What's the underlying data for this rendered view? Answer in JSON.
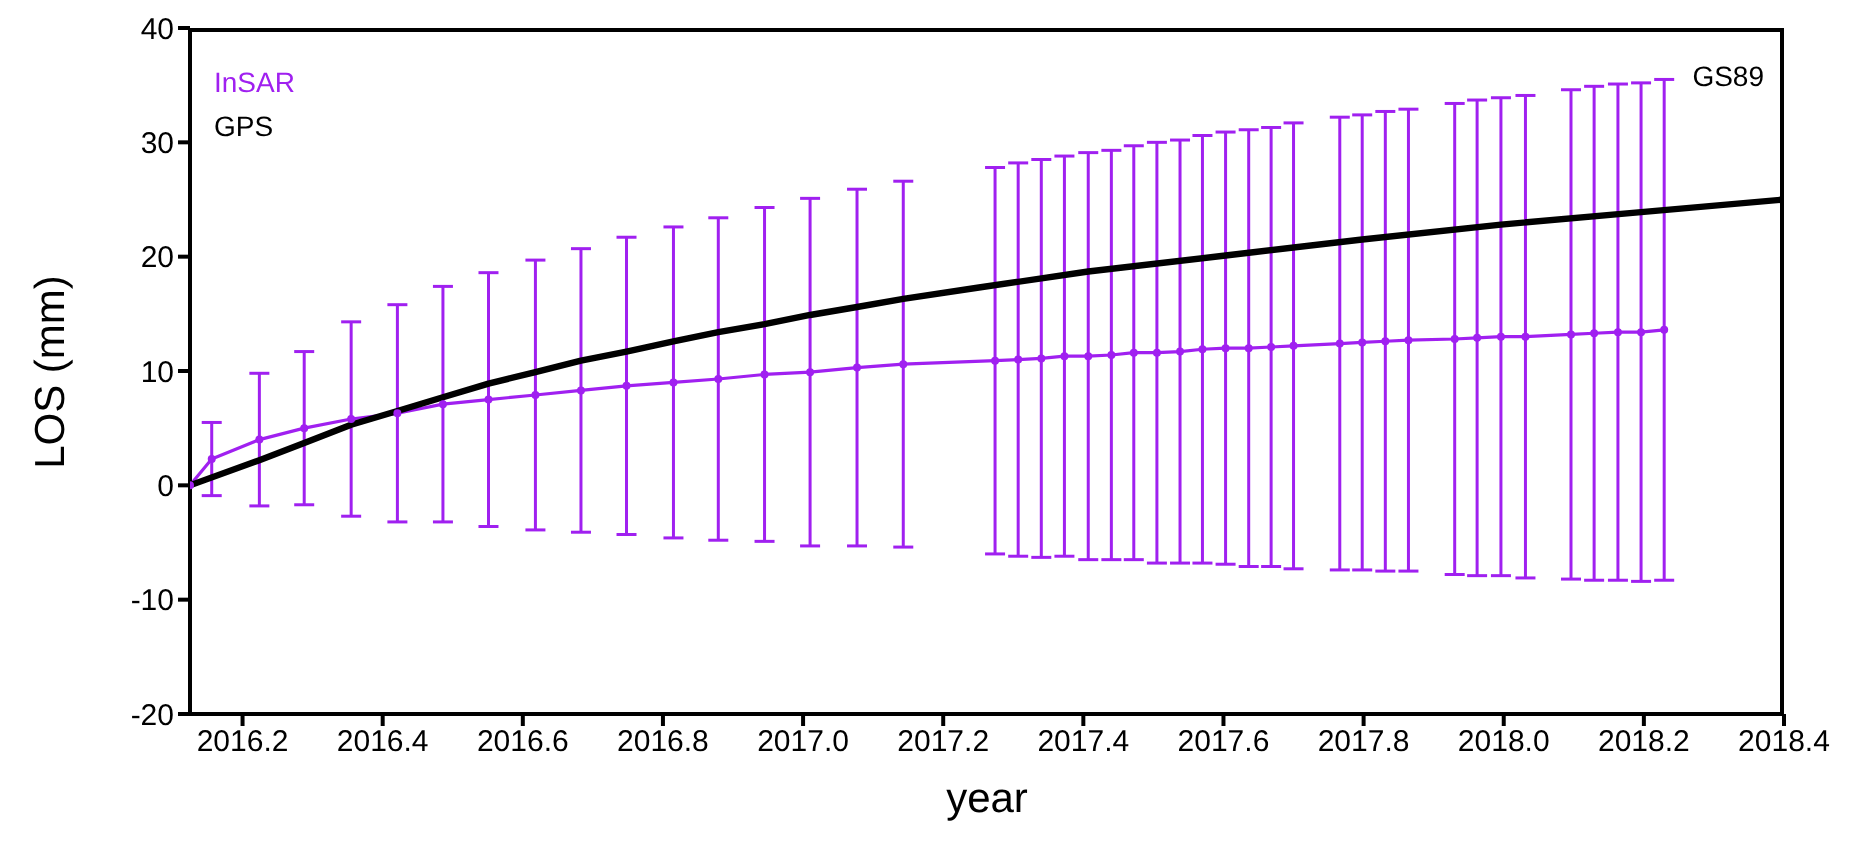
{
  "chart_data": {
    "type": "line",
    "xlabel": "year",
    "ylabel": "LOS (mm)",
    "annotations": [
      "GS89"
    ],
    "legend": "top left",
    "xlim": [
      2016.125,
      2018.4
    ],
    "xticks": [
      {
        "value": 2016.2,
        "label": "2016.2"
      },
      {
        "value": 2016.4,
        "label": "2016.4"
      },
      {
        "value": 2016.6,
        "label": "2016.6"
      },
      {
        "value": 2016.8,
        "label": "2016.8"
      },
      {
        "value": 2017.0,
        "label": "2017.0"
      },
      {
        "value": 2017.2,
        "label": "2017.2"
      },
      {
        "value": 2017.4,
        "label": "2017.4"
      },
      {
        "value": 2017.6,
        "label": "2017.6"
      },
      {
        "value": 2017.8,
        "label": "2017.8"
      },
      {
        "value": 2018.0,
        "label": "2018.0"
      },
      {
        "value": 2018.2,
        "label": "2018.2"
      },
      {
        "value": 2018.4,
        "label": "2018.4"
      }
    ],
    "ylim": [
      -20,
      40
    ],
    "yticks": [
      -20,
      -10,
      0,
      10,
      20,
      30,
      40
    ],
    "series": [
      {
        "name": "InSAR",
        "color": "#a020f0",
        "marker": "circle",
        "x": [
          2016.125,
          2016.156,
          2016.224,
          2016.288,
          2016.355,
          2016.421,
          2016.486,
          2016.551,
          2016.618,
          2016.683,
          2016.748,
          2016.815,
          2016.879,
          2016.945,
          2017.01,
          2017.077,
          2017.143,
          2017.274,
          2017.307,
          2017.34,
          2017.373,
          2017.407,
          2017.44,
          2017.472,
          2017.505,
          2017.538,
          2017.57,
          2017.603,
          2017.636,
          2017.668,
          2017.7,
          2017.766,
          2017.798,
          2017.831,
          2017.864,
          2017.93,
          2017.962,
          2017.996,
          2018.031,
          2018.096,
          2018.129,
          2018.163,
          2018.196,
          2018.229
        ],
        "values": [
          0,
          2.3,
          4.0,
          5.0,
          5.8,
          6.3,
          7.1,
          7.5,
          7.9,
          8.3,
          8.7,
          9.0,
          9.3,
          9.7,
          9.9,
          10.3,
          10.6,
          10.9,
          11.0,
          11.1,
          11.3,
          11.3,
          11.4,
          11.6,
          11.6,
          11.7,
          11.9,
          12.0,
          12.0,
          12.1,
          12.2,
          12.4,
          12.5,
          12.6,
          12.7,
          12.8,
          12.9,
          13.0,
          13.0,
          13.2,
          13.3,
          13.4,
          13.4,
          13.6
        ],
        "errors": [
          null,
          3.2,
          5.8,
          6.7,
          8.5,
          9.5,
          10.3,
          11.1,
          11.8,
          12.4,
          13.0,
          13.6,
          14.1,
          14.6,
          15.2,
          15.6,
          16.0,
          16.9,
          17.2,
          17.4,
          17.5,
          17.8,
          17.9,
          18.1,
          18.4,
          18.5,
          18.7,
          18.9,
          19.1,
          19.2,
          19.5,
          19.8,
          19.9,
          20.1,
          20.2,
          20.6,
          20.8,
          20.9,
          21.1,
          21.4,
          21.6,
          21.7,
          21.8,
          21.9
        ]
      },
      {
        "name": "GPS",
        "color": "#000000",
        "marker": "none",
        "x": [
          2016.125,
          2016.224,
          2016.288,
          2016.355,
          2016.421,
          2016.486,
          2016.551,
          2016.618,
          2016.683,
          2016.748,
          2016.815,
          2016.879,
          2016.945,
          2017.01,
          2017.077,
          2017.143,
          2017.251,
          2017.407,
          2017.603,
          2017.798,
          2017.996,
          2018.196,
          2018.4
        ],
        "values": [
          0,
          2.2,
          3.7,
          5.3,
          6.5,
          7.7,
          8.9,
          9.9,
          10.9,
          11.7,
          12.6,
          13.4,
          14.1,
          14.9,
          15.6,
          16.3,
          17.3,
          18.7,
          20.1,
          21.5,
          22.8,
          23.9,
          25.0
        ]
      }
    ]
  }
}
